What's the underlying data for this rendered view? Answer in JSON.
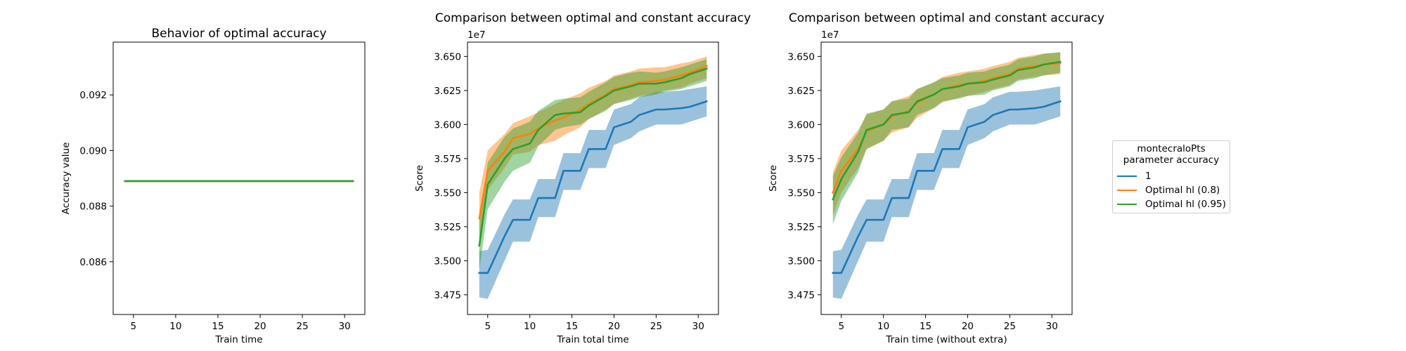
{
  "colors": {
    "blue": "#1f77b4",
    "orange": "#ff7f0e",
    "green": "#2ca02c"
  },
  "legend": {
    "title": "montecraloPts\n parameter accuracy",
    "entries": [
      {
        "label": "1",
        "color": "#1f77b4"
      },
      {
        "label": "Optimal hl (0.8)",
        "color": "#ff7f0e"
      },
      {
        "label": "Optimal hl (0.95)",
        "color": "#2ca02c"
      }
    ]
  },
  "chart_data": [
    {
      "type": "line",
      "title": "Behavior of optimal accuracy",
      "xlabel": "Train time",
      "ylabel": "Accuracy value",
      "xlim": [
        2.6,
        32.4
      ],
      "ylim": [
        0.0841,
        0.0939
      ],
      "xticks": [
        5,
        10,
        15,
        20,
        25,
        30
      ],
      "xtick_labels": [
        "5",
        "10",
        "15",
        "20",
        "25",
        "30"
      ],
      "yticks": [
        0.086,
        0.088,
        0.09,
        0.092
      ],
      "ytick_labels": [
        "0.086",
        "0.088",
        "0.090",
        "0.092"
      ],
      "x": [
        4,
        5,
        7,
        8,
        10,
        11,
        13,
        14,
        16,
        17,
        19,
        20,
        22,
        23,
        25,
        26,
        28,
        29,
        31
      ],
      "series": [
        {
          "color": "#1f77b4",
          "values": [
            0.0889,
            0.0889,
            0.0889,
            0.0889,
            0.0889,
            0.0889,
            0.0889,
            0.0889,
            0.0889,
            0.0889,
            0.0889,
            0.0889,
            0.0889,
            0.0889,
            0.0889,
            0.0889,
            0.0889,
            0.0889,
            0.0889
          ]
        },
        {
          "color": "#ff7f0e",
          "values": [
            0.0889,
            0.0889,
            0.0889,
            0.0889,
            0.0889,
            0.0889,
            0.0889,
            0.0889,
            0.0889,
            0.0889,
            0.0889,
            0.0889,
            0.0889,
            0.0889,
            0.0889,
            0.0889,
            0.0889,
            0.0889,
            0.0889
          ]
        },
        {
          "color": "#2ca02c",
          "values": [
            0.0889,
            0.0889,
            0.0889,
            0.0889,
            0.0889,
            0.0889,
            0.0889,
            0.0889,
            0.0889,
            0.0889,
            0.0889,
            0.0889,
            0.0889,
            0.0889,
            0.0889,
            0.0889,
            0.0889,
            0.0889,
            0.0889
          ]
        }
      ]
    },
    {
      "type": "line",
      "title": "Comparison between optimal and constant accuracy",
      "xlabel": "Train total time",
      "ylabel": "Score",
      "offset_label": "1e7",
      "xlim": [
        2.6,
        32.4
      ],
      "ylim": [
        3.4605,
        3.6605
      ],
      "xticks": [
        5,
        10,
        15,
        20,
        25,
        30
      ],
      "xtick_labels": [
        "5",
        "10",
        "15",
        "20",
        "25",
        "30"
      ],
      "yticks": [
        3.475,
        3.5,
        3.525,
        3.55,
        3.575,
        3.6,
        3.625,
        3.65
      ],
      "ytick_labels": [
        "3.475",
        "3.500",
        "3.525",
        "3.550",
        "3.575",
        "3.600",
        "3.625",
        "3.650"
      ],
      "x": [
        4,
        5,
        7,
        8,
        10,
        11,
        13,
        14,
        16,
        17,
        19,
        20,
        22,
        23,
        25,
        26,
        28,
        29,
        31
      ],
      "series": [
        {
          "color": "#1f77b4",
          "values": [
            3.491,
            3.491,
            3.518,
            3.53,
            3.53,
            3.546,
            3.546,
            3.566,
            3.566,
            3.582,
            3.582,
            3.598,
            3.602,
            3.607,
            3.611,
            3.611,
            3.612,
            3.613,
            3.617
          ],
          "lower": [
            3.473,
            3.472,
            3.5,
            3.514,
            3.514,
            3.532,
            3.532,
            3.552,
            3.552,
            3.568,
            3.568,
            3.585,
            3.59,
            3.595,
            3.6,
            3.6,
            3.6,
            3.602,
            3.606
          ],
          "upper": [
            3.507,
            3.508,
            3.534,
            3.545,
            3.545,
            3.56,
            3.56,
            3.579,
            3.579,
            3.596,
            3.596,
            3.611,
            3.615,
            3.62,
            3.624,
            3.624,
            3.625,
            3.626,
            3.628
          ]
        },
        {
          "color": "#ff7f0e",
          "values": [
            3.531,
            3.566,
            3.58,
            3.59,
            3.593,
            3.597,
            3.603,
            3.605,
            3.611,
            3.615,
            3.622,
            3.626,
            3.629,
            3.631,
            3.632,
            3.633,
            3.636,
            3.638,
            3.643
          ],
          "lower": [
            3.512,
            3.552,
            3.568,
            3.578,
            3.58,
            3.585,
            3.588,
            3.592,
            3.598,
            3.604,
            3.611,
            3.615,
            3.619,
            3.621,
            3.623,
            3.625,
            3.627,
            3.63,
            3.634
          ],
          "upper": [
            3.55,
            3.581,
            3.593,
            3.601,
            3.606,
            3.609,
            3.615,
            3.618,
            3.623,
            3.627,
            3.632,
            3.636,
            3.639,
            3.641,
            3.642,
            3.642,
            3.645,
            3.646,
            3.65
          ]
        },
        {
          "color": "#2ca02c",
          "values": [
            3.511,
            3.556,
            3.575,
            3.582,
            3.586,
            3.596,
            3.607,
            3.608,
            3.609,
            3.614,
            3.621,
            3.625,
            3.628,
            3.63,
            3.63,
            3.631,
            3.634,
            3.637,
            3.641
          ],
          "lower": [
            3.493,
            3.538,
            3.558,
            3.566,
            3.572,
            3.584,
            3.596,
            3.598,
            3.6,
            3.604,
            3.61,
            3.615,
            3.618,
            3.62,
            3.622,
            3.624,
            3.626,
            3.628,
            3.632
          ],
          "upper": [
            3.529,
            3.572,
            3.591,
            3.597,
            3.602,
            3.61,
            3.618,
            3.619,
            3.62,
            3.624,
            3.631,
            3.635,
            3.638,
            3.639,
            3.638,
            3.639,
            3.642,
            3.644,
            3.648
          ]
        }
      ]
    },
    {
      "type": "line",
      "title": "Comparison between optimal and constant accuracy",
      "xlabel": "Train time (without extra)",
      "ylabel": "Score",
      "offset_label": "1e7",
      "xlim": [
        2.6,
        32.4
      ],
      "ylim": [
        3.4605,
        3.6605
      ],
      "xticks": [
        5,
        10,
        15,
        20,
        25,
        30
      ],
      "xtick_labels": [
        "5",
        "10",
        "15",
        "20",
        "25",
        "30"
      ],
      "yticks": [
        3.475,
        3.5,
        3.525,
        3.55,
        3.575,
        3.6,
        3.625,
        3.65
      ],
      "ytick_labels": [
        "3.475",
        "3.500",
        "3.525",
        "3.550",
        "3.575",
        "3.600",
        "3.625",
        "3.650"
      ],
      "x": [
        4,
        5,
        7,
        8,
        10,
        11,
        13,
        14,
        16,
        17,
        19,
        20,
        22,
        23,
        25,
        26,
        28,
        29,
        31
      ],
      "series": [
        {
          "color": "#1f77b4",
          "values": [
            3.491,
            3.491,
            3.518,
            3.53,
            3.53,
            3.546,
            3.546,
            3.566,
            3.566,
            3.582,
            3.582,
            3.598,
            3.602,
            3.607,
            3.611,
            3.611,
            3.612,
            3.613,
            3.617
          ],
          "lower": [
            3.473,
            3.472,
            3.5,
            3.514,
            3.514,
            3.532,
            3.532,
            3.552,
            3.552,
            3.568,
            3.568,
            3.585,
            3.59,
            3.595,
            3.6,
            3.6,
            3.6,
            3.602,
            3.606
          ],
          "upper": [
            3.507,
            3.508,
            3.534,
            3.545,
            3.545,
            3.56,
            3.56,
            3.579,
            3.579,
            3.596,
            3.596,
            3.611,
            3.615,
            3.62,
            3.624,
            3.624,
            3.625,
            3.626,
            3.628
          ]
        },
        {
          "color": "#ff7f0e",
          "values": [
            3.55,
            3.566,
            3.582,
            3.595,
            3.6,
            3.606,
            3.61,
            3.616,
            3.622,
            3.626,
            3.629,
            3.63,
            3.632,
            3.634,
            3.637,
            3.641,
            3.643,
            3.644,
            3.645
          ],
          "lower": [
            3.533,
            3.55,
            3.568,
            3.582,
            3.588,
            3.594,
            3.598,
            3.605,
            3.612,
            3.616,
            3.62,
            3.621,
            3.624,
            3.626,
            3.629,
            3.633,
            3.635,
            3.636,
            3.637
          ],
          "upper": [
            3.565,
            3.581,
            3.596,
            3.607,
            3.611,
            3.617,
            3.621,
            3.626,
            3.631,
            3.635,
            3.638,
            3.639,
            3.641,
            3.643,
            3.646,
            3.649,
            3.651,
            3.652,
            3.653
          ]
        },
        {
          "color": "#2ca02c",
          "values": [
            3.545,
            3.56,
            3.58,
            3.596,
            3.6,
            3.607,
            3.609,
            3.617,
            3.622,
            3.626,
            3.628,
            3.63,
            3.631,
            3.633,
            3.636,
            3.64,
            3.642,
            3.644,
            3.646
          ],
          "lower": [
            3.527,
            3.544,
            3.565,
            3.582,
            3.588,
            3.596,
            3.598,
            3.607,
            3.612,
            3.617,
            3.619,
            3.621,
            3.622,
            3.625,
            3.628,
            3.632,
            3.634,
            3.636,
            3.638
          ],
          "upper": [
            3.562,
            3.576,
            3.594,
            3.608,
            3.611,
            3.617,
            3.619,
            3.626,
            3.631,
            3.634,
            3.636,
            3.638,
            3.639,
            3.641,
            3.644,
            3.648,
            3.65,
            3.652,
            3.653
          ]
        }
      ]
    }
  ]
}
